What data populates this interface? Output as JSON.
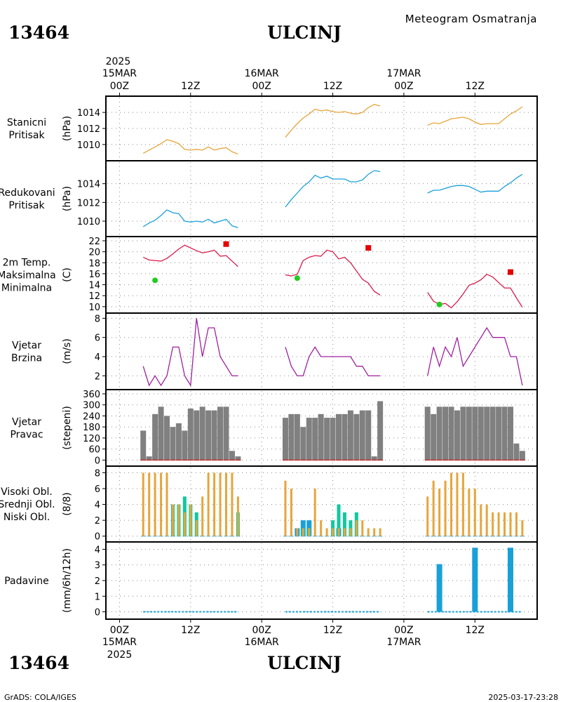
{
  "header": {
    "station_id": "13464",
    "station_name": "ULCINJ",
    "product_title": "Meteogram Osmatranja",
    "footer_left": "GrADS: COLA/IGES",
    "footer_right": "2025-03-17-23:28"
  },
  "colors": {
    "orange": "#E6A53C",
    "cyan": "#1AA0D8",
    "crimson": "#D81B4A",
    "red": "#E60000",
    "green": "#22CC22",
    "purple": "#A020A0",
    "gray": "#808080",
    "teal": "#10C8A0"
  },
  "time_axis": {
    "top": [
      {
        "year": "2025",
        "date": "15MAR",
        "hour": "00Z",
        "t": 0
      },
      {
        "hour": "12Z",
        "t": 12
      },
      {
        "date": "16MAR",
        "hour": "00Z",
        "t": 24
      },
      {
        "hour": "12Z",
        "t": 36
      },
      {
        "date": "17MAR",
        "hour": "00Z",
        "t": 48
      },
      {
        "hour": "12Z",
        "t": 60
      }
    ],
    "bottom": [
      {
        "hour": "00Z",
        "date": "15MAR",
        "year": "2025",
        "t": 0
      },
      {
        "hour": "12Z",
        "t": 12
      },
      {
        "hour": "00Z",
        "date": "16MAR",
        "t": 24
      },
      {
        "hour": "12Z",
        "t": 36
      },
      {
        "hour": "00Z",
        "date": "17MAR",
        "t": 48
      },
      {
        "hour": "12Z",
        "t": 60
      }
    ]
  },
  "chart_data": [
    {
      "type": "line",
      "label_lines": [
        "Stanicni",
        "Pritisak"
      ],
      "unit": "(hPa)",
      "ylim": [
        1008.5,
        1015.5
      ],
      "yticks": [
        1010,
        1012,
        1014
      ],
      "color": "#E6A53C",
      "segments": [
        {
          "x": [
            4,
            5,
            6,
            7,
            8,
            9,
            10,
            11,
            12,
            13,
            14,
            15,
            16,
            17,
            18,
            19,
            20
          ],
          "y": [
            1008.9,
            1009.3,
            1009.7,
            1010.1,
            1010.6,
            1010.4,
            1010.1,
            1009.4,
            1009.3,
            1009.4,
            1009.3,
            1009.7,
            1009.3,
            1009.5,
            1009.6,
            1009.1,
            1008.8
          ]
        },
        {
          "x": [
            28,
            29,
            30,
            31,
            32,
            33,
            34,
            35,
            36,
            37,
            38,
            39,
            40,
            41,
            42,
            43,
            44
          ],
          "y": [
            1010.9,
            1011.8,
            1012.6,
            1013.3,
            1013.8,
            1014.4,
            1014.2,
            1014.3,
            1014.1,
            1014.0,
            1014.1,
            1013.9,
            1013.8,
            1014.0,
            1014.6,
            1015.0,
            1014.8
          ]
        },
        {
          "x": [
            52,
            53,
            54,
            55,
            56,
            57,
            58,
            59,
            60,
            61,
            62,
            63,
            64,
            65,
            66,
            67,
            68
          ],
          "y": [
            1012.4,
            1012.7,
            1012.6,
            1012.9,
            1013.2,
            1013.3,
            1013.4,
            1013.2,
            1012.8,
            1012.5,
            1012.6,
            1012.6,
            1012.6,
            1013.2,
            1013.8,
            1014.2,
            1014.7
          ]
        }
      ]
    },
    {
      "type": "line",
      "label_lines": [
        "Redukovani",
        "Pritisak"
      ],
      "unit": "(hPa)",
      "ylim": [
        1008.8,
        1016.0
      ],
      "yticks": [
        1010,
        1012,
        1014
      ],
      "color": "#1AA0D8",
      "segments": [
        {
          "x": [
            4,
            5,
            6,
            7,
            8,
            9,
            10,
            11,
            12,
            13,
            14,
            15,
            16,
            17,
            18,
            19,
            20
          ],
          "y": [
            1009.4,
            1009.8,
            1010.1,
            1010.6,
            1011.2,
            1010.9,
            1010.8,
            1010.0,
            1009.9,
            1010.0,
            1009.9,
            1010.2,
            1009.8,
            1010.0,
            1010.2,
            1009.5,
            1009.3
          ]
        },
        {
          "x": [
            28,
            29,
            30,
            31,
            32,
            33,
            34,
            35,
            36,
            37,
            38,
            39,
            40,
            41,
            42,
            43,
            44
          ],
          "y": [
            1011.5,
            1012.3,
            1013.0,
            1013.7,
            1014.2,
            1014.9,
            1014.6,
            1014.8,
            1014.5,
            1014.5,
            1014.5,
            1014.2,
            1014.2,
            1014.4,
            1015.0,
            1015.4,
            1015.3
          ]
        },
        {
          "x": [
            52,
            53,
            54,
            55,
            56,
            57,
            58,
            59,
            60,
            61,
            62,
            63,
            64,
            65,
            66,
            67,
            68
          ],
          "y": [
            1013.0,
            1013.3,
            1013.3,
            1013.5,
            1013.7,
            1013.8,
            1013.8,
            1013.7,
            1013.4,
            1013.1,
            1013.2,
            1013.2,
            1013.2,
            1013.7,
            1014.1,
            1014.6,
            1015.0
          ]
        }
      ]
    },
    {
      "type": "line",
      "label_lines": [
        "2m Temp.",
        "Maksimalna",
        "Minimalna"
      ],
      "label_colors": [
        "#D81B4A",
        "#E60000",
        "#22CC22"
      ],
      "unit": "(C)",
      "ylim": [
        9.6,
        22.0
      ],
      "yticks": [
        10,
        12,
        14,
        16,
        18,
        20,
        22
      ],
      "color": "#D81B4A",
      "segments": [
        {
          "x": [
            4,
            5,
            6,
            7,
            8,
            9,
            10,
            11,
            12,
            13,
            14,
            15,
            16,
            17,
            18,
            19,
            20
          ],
          "y": [
            19.0,
            18.5,
            18.4,
            18.3,
            18.8,
            19.6,
            20.5,
            21.2,
            20.7,
            20.2,
            19.8,
            20.0,
            20.3,
            19.2,
            19.3,
            18.3,
            17.3
          ]
        },
        {
          "x": [
            28,
            29,
            30,
            31,
            32,
            33,
            34,
            35,
            36,
            37,
            38,
            39,
            40,
            41,
            42,
            43,
            44
          ],
          "y": [
            15.8,
            15.6,
            15.9,
            18.4,
            19.0,
            19.3,
            19.2,
            20.3,
            20.0,
            18.7,
            19.0,
            18.0,
            16.5,
            15.0,
            14.3,
            12.8,
            12.1
          ]
        },
        {
          "x": [
            52,
            53,
            54,
            55,
            56,
            57,
            58,
            59,
            60,
            61,
            62,
            63,
            64,
            65,
            66,
            67,
            68
          ],
          "y": [
            12.6,
            11.0,
            10.4,
            10.6,
            9.8,
            10.9,
            12.3,
            13.9,
            14.3,
            14.9,
            15.9,
            15.4,
            14.4,
            13.4,
            13.4,
            11.6,
            9.9
          ]
        }
      ],
      "max_points": {
        "x": [
          18,
          42,
          66
        ],
        "y": [
          21.4,
          20.7,
          16.3
        ]
      },
      "min_points": {
        "x": [
          6,
          30,
          54
        ],
        "y": [
          14.8,
          15.2,
          10.4
        ]
      }
    },
    {
      "type": "line",
      "label_lines": [
        "Vjetar",
        "Brzina"
      ],
      "unit": "(m/s)",
      "ylim": [
        1,
        8.1
      ],
      "yticks": [
        2,
        4,
        6,
        8
      ],
      "color": "#A020A0",
      "segments": [
        {
          "x": [
            4,
            5,
            6,
            7,
            8,
            9,
            10,
            11,
            12,
            13,
            14,
            15,
            16,
            17,
            18,
            19,
            20
          ],
          "y": [
            3,
            1,
            2,
            1,
            2,
            5,
            5,
            2,
            1,
            8,
            4,
            7,
            7,
            4,
            3,
            2,
            2
          ]
        },
        {
          "x": [
            28,
            29,
            30,
            31,
            32,
            33,
            34,
            35,
            36,
            37,
            38,
            39,
            40,
            41,
            42,
            43,
            44
          ],
          "y": [
            5,
            3,
            2,
            2,
            4,
            5,
            4,
            4,
            4,
            4,
            4,
            4,
            3,
            3,
            2,
            2,
            2
          ]
        },
        {
          "x": [
            52,
            53,
            54,
            55,
            56,
            57,
            58,
            59,
            60,
            61,
            62,
            63,
            64,
            65,
            66,
            67,
            68
          ],
          "y": [
            2,
            5,
            3,
            5,
            4,
            6,
            3,
            4,
            5,
            6,
            7,
            6,
            6,
            6,
            4,
            4,
            1
          ]
        }
      ]
    },
    {
      "type": "bar",
      "label_lines": [
        "Vjetar",
        "Pravac"
      ],
      "unit": "(stepeni)",
      "ylim": [
        -10,
        360
      ],
      "yticks": [
        0,
        60,
        120,
        180,
        240,
        300,
        360
      ],
      "color": "#808080",
      "x": [
        4,
        5,
        6,
        7,
        8,
        9,
        10,
        11,
        12,
        13,
        14,
        15,
        16,
        17,
        18,
        19,
        20,
        28,
        29,
        30,
        31,
        32,
        33,
        34,
        35,
        36,
        37,
        38,
        39,
        40,
        41,
        42,
        43,
        44,
        52,
        53,
        54,
        55,
        56,
        57,
        58,
        59,
        60,
        61,
        62,
        63,
        64,
        65,
        66,
        67,
        68
      ],
      "values": [
        160,
        20,
        250,
        290,
        240,
        180,
        200,
        160,
        280,
        270,
        290,
        270,
        270,
        290,
        290,
        50,
        20,
        230,
        250,
        250,
        180,
        230,
        230,
        250,
        230,
        230,
        250,
        250,
        270,
        250,
        270,
        270,
        20,
        320,
        290,
        250,
        290,
        290,
        290,
        270,
        290,
        290,
        290,
        290,
        290,
        290,
        290,
        290,
        290,
        90,
        50
      ]
    },
    {
      "type": "bar",
      "label_lines": [
        "Visoki Obl.",
        "Srednji Obl.",
        "Niski Obl."
      ],
      "label_colors": [
        "#1AA0D8",
        "#10C8A0",
        "#E6A53C"
      ],
      "unit": "(8/8)",
      "ylim": [
        -0.2,
        8.3
      ],
      "yticks": [
        0,
        2,
        4,
        6,
        8
      ],
      "x": [
        4,
        5,
        6,
        7,
        8,
        9,
        10,
        11,
        12,
        13,
        14,
        15,
        16,
        17,
        18,
        19,
        20,
        28,
        29,
        30,
        31,
        32,
        33,
        34,
        35,
        36,
        37,
        38,
        39,
        40,
        41,
        42,
        43,
        44,
        52,
        53,
        54,
        55,
        56,
        57,
        58,
        59,
        60,
        61,
        62,
        63,
        64,
        65,
        66,
        67,
        68
      ],
      "series": [
        {
          "name": "Visoki Obl.",
          "color": "#1AA0D8",
          "values": [
            0,
            0,
            0,
            0,
            0,
            0,
            0,
            0,
            0,
            0,
            0,
            0,
            0,
            0,
            0,
            0,
            0,
            0,
            0,
            1,
            2,
            2,
            0,
            0,
            0,
            0,
            1,
            0,
            0,
            0,
            0,
            0,
            0,
            0,
            0,
            0,
            0,
            0,
            0,
            0,
            0,
            0,
            0,
            0,
            0,
            0,
            0,
            0,
            0,
            0,
            0
          ]
        },
        {
          "name": "Srednji Obl.",
          "color": "#10C8A0",
          "values": [
            0,
            0,
            0,
            0,
            0,
            4,
            4,
            5,
            4,
            3,
            0,
            0,
            0,
            0,
            0,
            0,
            3,
            0,
            0,
            0,
            1,
            1,
            0,
            0,
            0,
            2,
            4,
            3,
            2,
            3,
            0,
            0,
            0,
            0,
            0,
            0,
            0,
            0,
            0,
            0,
            0,
            0,
            0,
            0,
            0,
            0,
            0,
            0,
            0,
            0,
            0
          ]
        },
        {
          "name": "Niski Obl.",
          "color": "#E6A53C",
          "values": [
            8,
            8,
            8,
            8,
            8,
            4,
            4,
            3,
            4,
            2,
            5,
            8,
            8,
            8,
            8,
            8,
            5,
            7,
            6,
            1,
            1,
            1,
            6,
            2,
            1,
            1,
            1,
            1,
            1,
            2,
            2,
            1,
            1,
            1,
            5,
            7,
            6,
            7,
            8,
            8,
            8,
            6,
            6,
            4,
            4,
            3,
            3,
            3,
            3,
            3,
            2
          ]
        }
      ]
    },
    {
      "type": "bar",
      "label_lines": [
        "Padavine"
      ],
      "unit": "(mm/6h/12h)",
      "ylim": [
        -0.2,
        4.2
      ],
      "yticks": [
        0,
        1,
        2,
        3,
        4
      ],
      "color": "#1AA0D8",
      "x": [
        54,
        60,
        66
      ],
      "values": [
        3.05,
        4.1,
        4.1
      ],
      "baseline_segments": [
        [
          4,
          20
        ],
        [
          28,
          44
        ],
        [
          52,
          68
        ]
      ]
    }
  ]
}
